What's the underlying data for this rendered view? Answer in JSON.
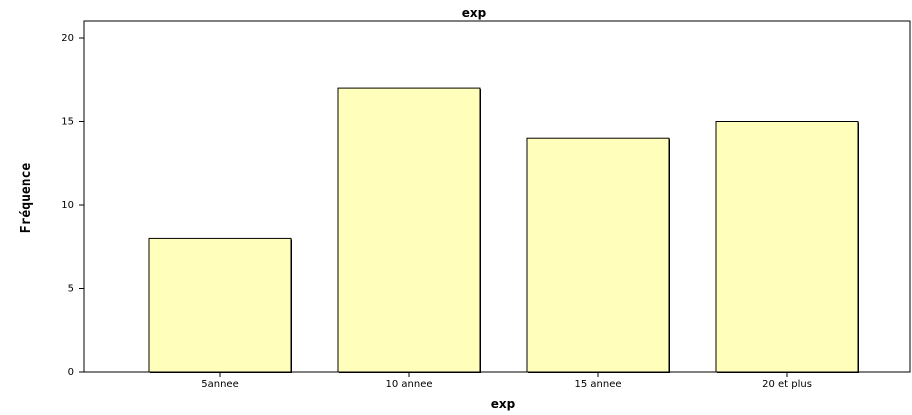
{
  "chart_data": {
    "type": "bar",
    "title": "exp",
    "xlabel": "exp",
    "ylabel": "Fréquence",
    "categories": [
      "5annee",
      "10 annee",
      "15 annee",
      "20 et plus"
    ],
    "values": [
      8,
      17,
      14,
      15
    ],
    "ylim": [
      0,
      20
    ],
    "yticks": [
      "0",
      "5",
      "10",
      "15",
      "20"
    ],
    "grid": false,
    "legend": "none",
    "colors": {
      "bar_fill": "#ffffbb",
      "bar_stroke": "#000000",
      "axis": "#000000",
      "frame": "#000000",
      "background": "#ffffff"
    }
  }
}
